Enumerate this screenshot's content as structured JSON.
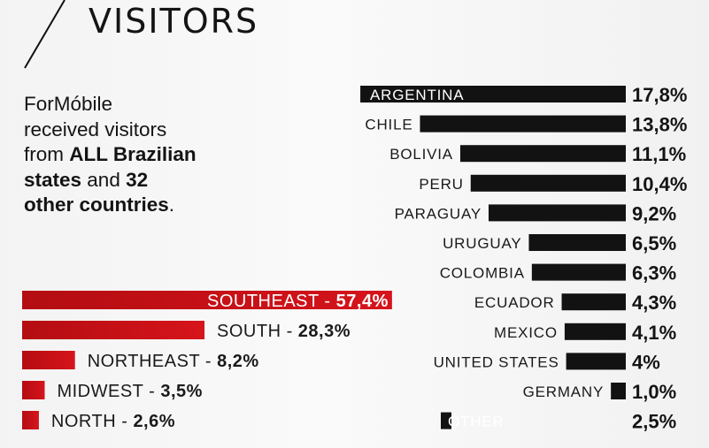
{
  "title": "VISITORS",
  "intro": {
    "line1": "ForMóbile",
    "line2": "received visitors",
    "line3_pre": "from ",
    "line3_bold": "ALL Brazilian",
    "line4_bold_a": "states",
    "line4_mid": " and ",
    "line4_bold_b": "32",
    "line5_bold": "other countries",
    "line5_post": "."
  },
  "colors": {
    "region_bar": "#d6141b",
    "region_bar_dark": "#b30d12",
    "country_bar": "#121212",
    "text": "#141414"
  },
  "chart_data": [
    {
      "type": "bar",
      "orientation": "horizontal",
      "categories": [
        "SOUTHEAST",
        "SOUTH",
        "NORTHEAST",
        "MIDWEST",
        "NORTH"
      ],
      "values": [
        57.4,
        28.3,
        8.2,
        3.5,
        2.6
      ],
      "value_labels": [
        "57,4%",
        "28,3%",
        "8,2%",
        "3,5%",
        "2,6%"
      ],
      "separator": " - ",
      "unit": "%"
    },
    {
      "type": "bar",
      "orientation": "horizontal",
      "categories": [
        "ARGENTINA",
        "CHILE",
        "BOLIVIA",
        "PERU",
        "PARAGUAY",
        "URUGUAY",
        "COLOMBIA",
        "ECUADOR",
        "MEXICO",
        "UNITED STATES",
        "GERMANY",
        "OTHER"
      ],
      "values": [
        17.8,
        13.8,
        11.1,
        10.4,
        9.2,
        6.5,
        6.3,
        4.3,
        4.1,
        4.0,
        1.0,
        2.5
      ],
      "value_labels": [
        "17,8%",
        "13,8%",
        "11,1%",
        "10,4%",
        "9,2%",
        "6,5%",
        "6,3%",
        "4,3%",
        "4,1%",
        "4%",
        "1,0%",
        "2,5%"
      ],
      "unit": "%"
    }
  ]
}
